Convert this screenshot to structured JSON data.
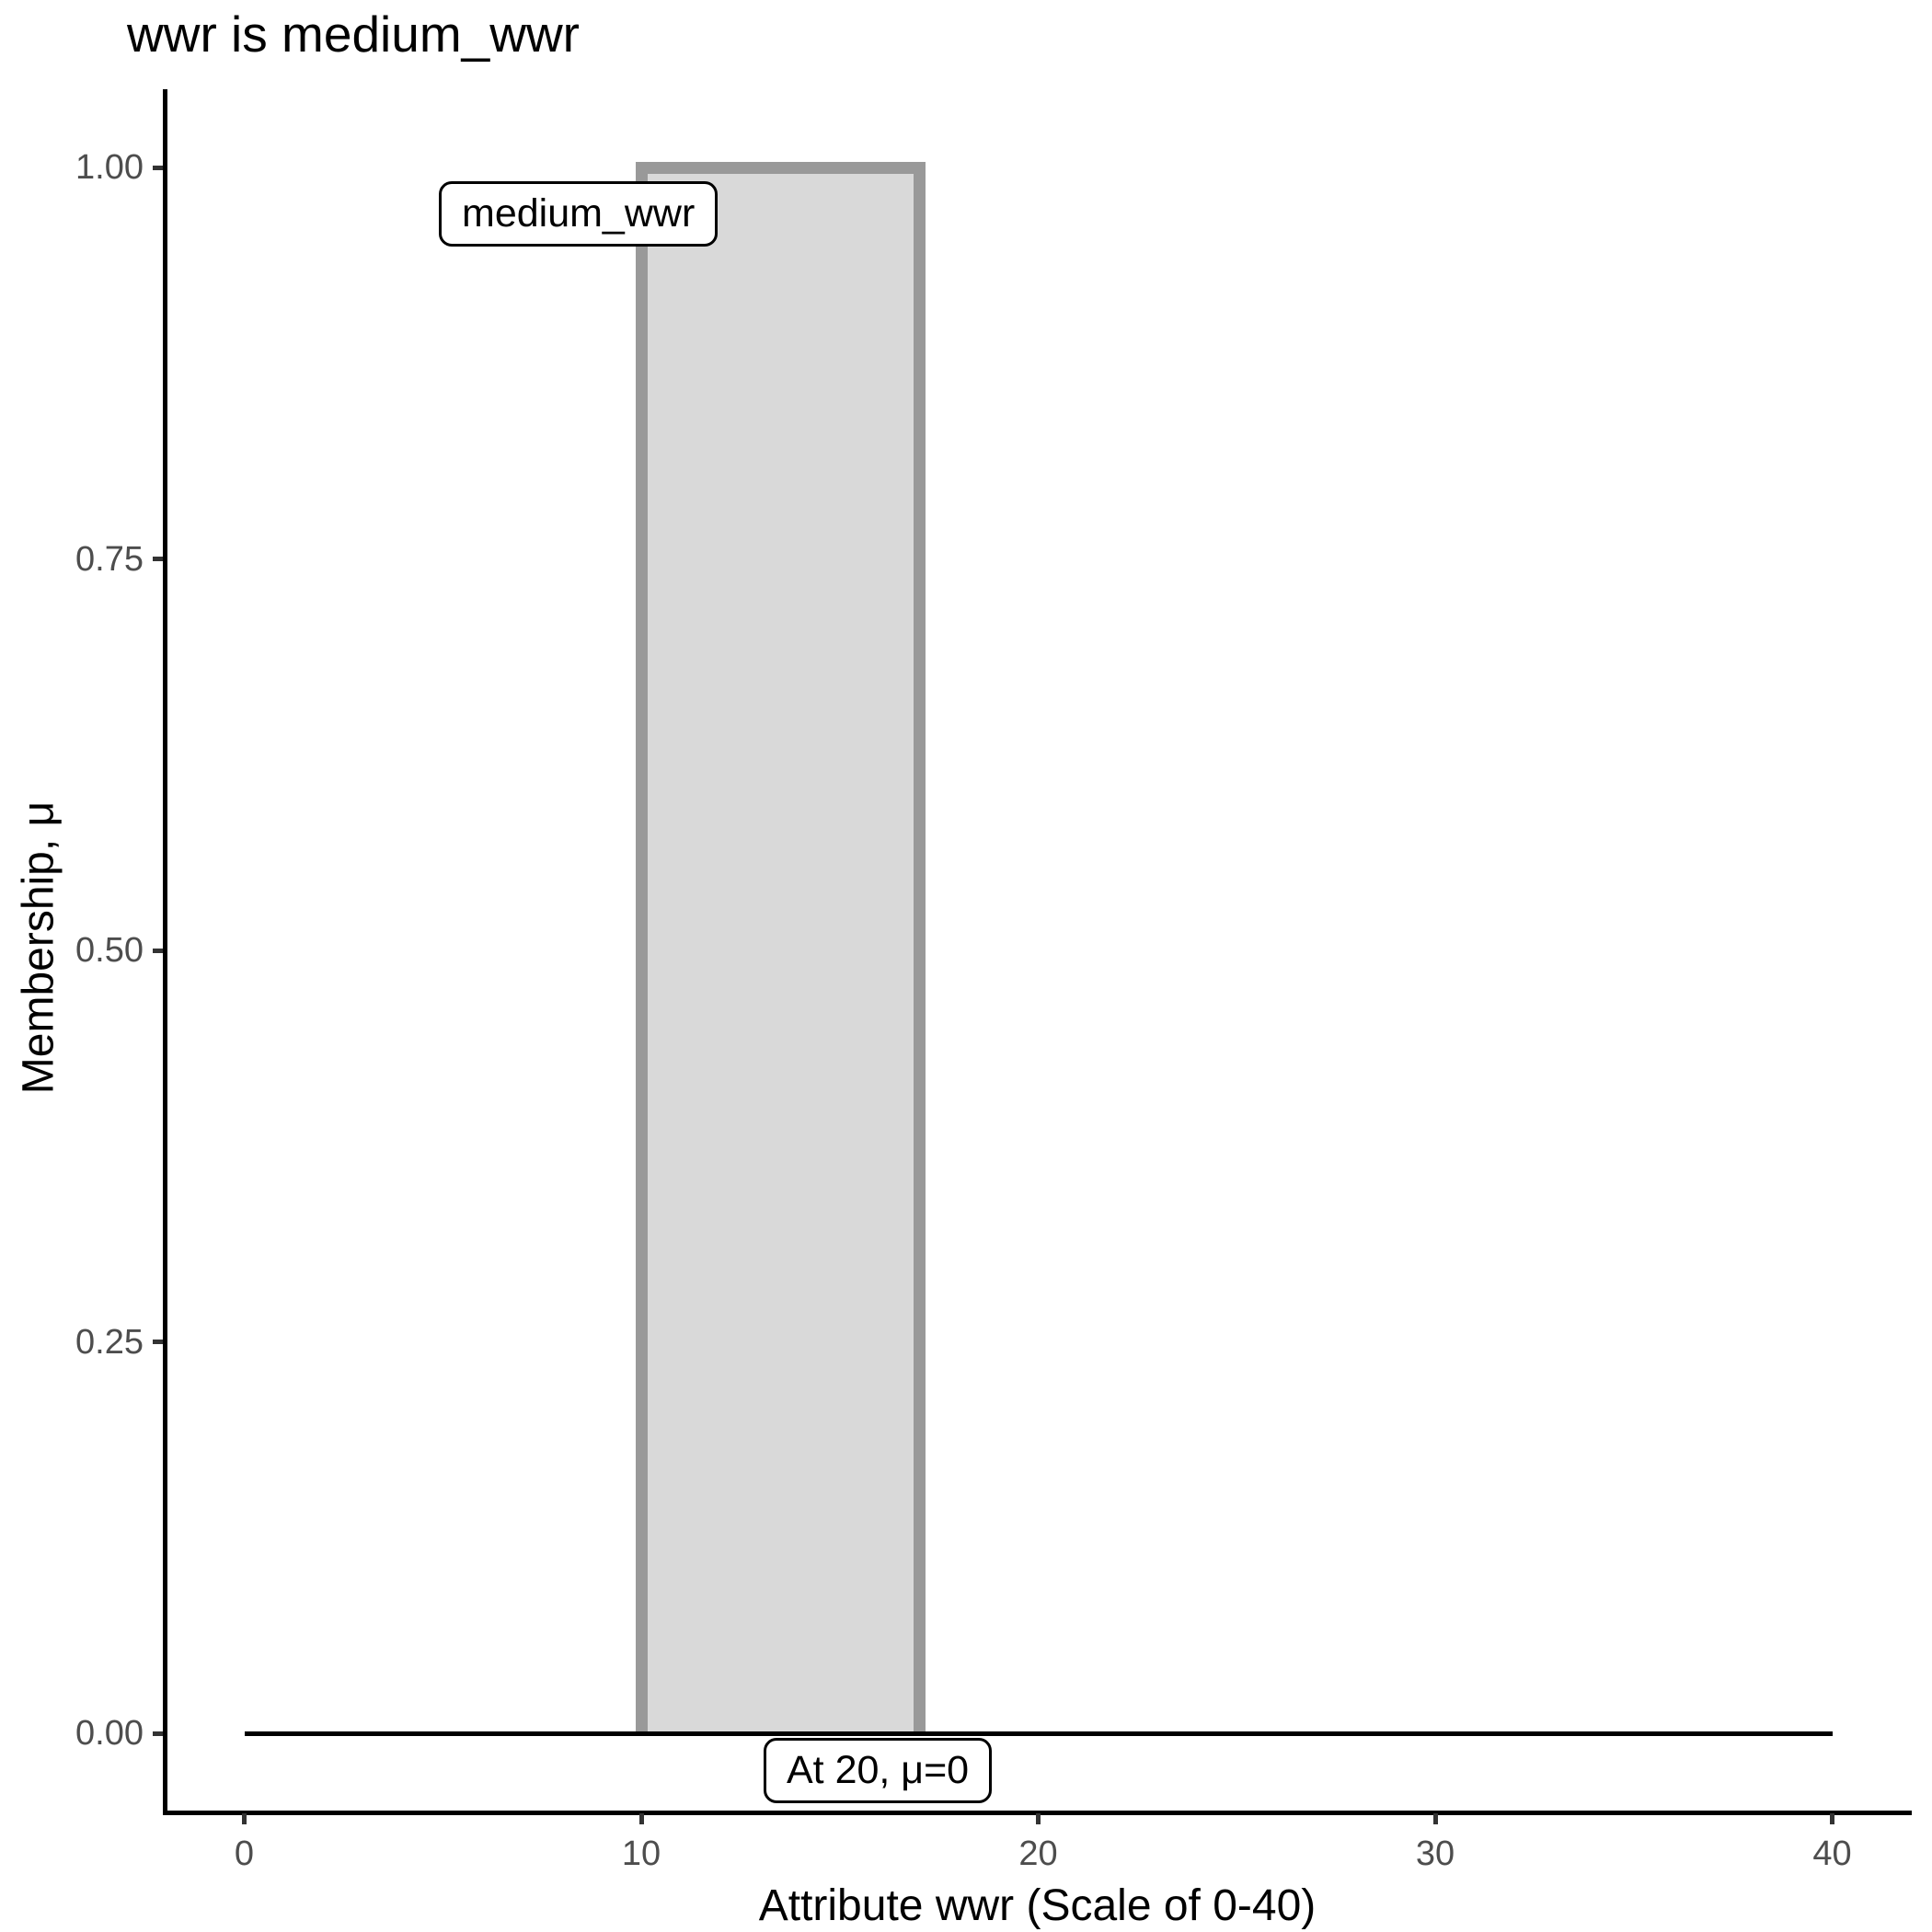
{
  "chart_data": {
    "type": "area",
    "title": "wwr is medium_wwr",
    "xlabel": "Attribute wwr (Scale of 0-40)",
    "ylabel": "Membership, μ",
    "xlim": [
      0,
      40
    ],
    "ylim": [
      0,
      1
    ],
    "grid": false,
    "legend": "none",
    "xticks": [
      {
        "v": 0,
        "label": "0"
      },
      {
        "v": 10,
        "label": "10"
      },
      {
        "v": 20,
        "label": "20"
      },
      {
        "v": 30,
        "label": "30"
      },
      {
        "v": 40,
        "label": "40"
      }
    ],
    "yticks": [
      {
        "v": 0,
        "label": "0.00"
      },
      {
        "v": 0.25,
        "label": "0.25"
      },
      {
        "v": 0.5,
        "label": "0.50"
      },
      {
        "v": 0.75,
        "label": "0.75"
      },
      {
        "v": 1,
        "label": "1.00"
      }
    ],
    "series": [
      {
        "name": "medium_wwr",
        "shape": "rectangular-membership-function",
        "points": [
          {
            "x": 10,
            "mu": 0
          },
          {
            "x": 10,
            "mu": 1
          },
          {
            "x": 17,
            "mu": 1
          },
          {
            "x": 17,
            "mu": 0
          }
        ],
        "fill": "#d9d9d9",
        "stroke": "#999999",
        "stroke_width": 13
      }
    ],
    "baseline": {
      "x_start": 0,
      "x_end": 40,
      "mu": 0,
      "color": "#000000"
    },
    "annotations": [
      {
        "text": "medium_wwr",
        "anchor_x": 10,
        "anchor_mu": 1
      },
      {
        "text": "At 20, μ=0",
        "anchor_x": 20,
        "anchor_mu": 0
      }
    ],
    "colors": {
      "background": "#ffffff",
      "axis_line": "#000000",
      "tick_mark": "#333333",
      "tick_label": "#4d4d4d",
      "title_text": "#000000",
      "annotation_bg": "#ffffff",
      "annotation_border": "#000000"
    }
  }
}
